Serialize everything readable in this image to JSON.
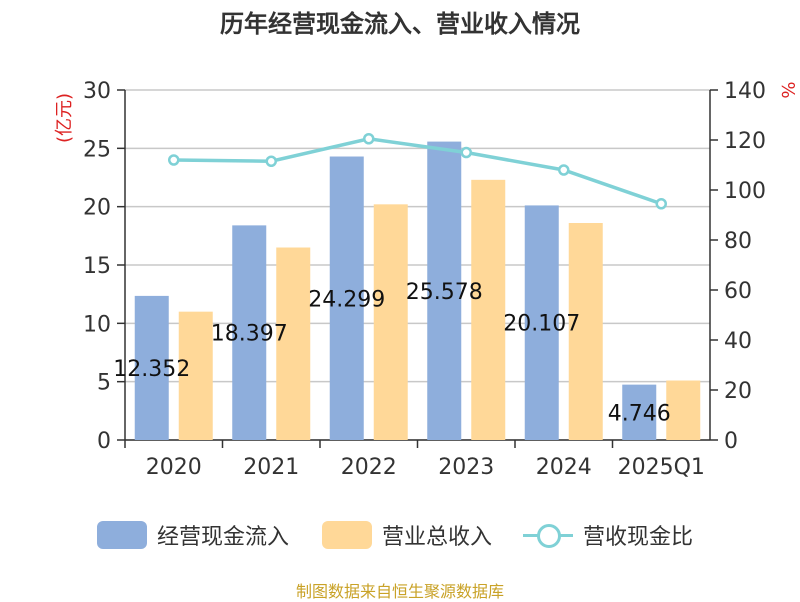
{
  "title": "历年经营现金流入、营业收入情况",
  "source": "制图数据来自恒生聚源数据库",
  "colors": {
    "cash_inflow": "#8eaedc",
    "revenue": "#ffd898",
    "ratio": "#7fd1d6",
    "left_unit": "#d22"
  },
  "chart_data": {
    "type": "bar",
    "categories": [
      "2020",
      "2021",
      "2022",
      "2023",
      "2024",
      "2025Q1"
    ],
    "series": [
      {
        "name": "经营现金流入",
        "values": [
          12.352,
          18.397,
          24.299,
          25.578,
          20.107,
          4.746
        ],
        "labels": [
          "12.352",
          "18.397",
          "24.299",
          "25.578",
          "20.107",
          "4.746"
        ]
      },
      {
        "name": "营业总收入",
        "values": [
          11.0,
          16.5,
          20.2,
          22.3,
          18.6,
          5.1
        ]
      },
      {
        "name": "营收现金比",
        "type": "line",
        "axis": "right",
        "values": [
          112,
          111.5,
          120.5,
          115,
          108,
          94.5
        ]
      }
    ],
    "ylabel": "(亿元)",
    "ylim": [
      0,
      30
    ],
    "yticks": [
      0,
      5,
      10,
      15,
      20,
      25,
      30
    ],
    "y2label": "%",
    "y2lim": [
      0,
      140
    ],
    "y2ticks": [
      0,
      20,
      40,
      60,
      80,
      100,
      120,
      140
    ],
    "grid": true,
    "legend": "bottom"
  },
  "legend": {
    "items": [
      {
        "label": "经营现金流入"
      },
      {
        "label": "营业总收入"
      },
      {
        "label": "营收现金比"
      }
    ]
  }
}
